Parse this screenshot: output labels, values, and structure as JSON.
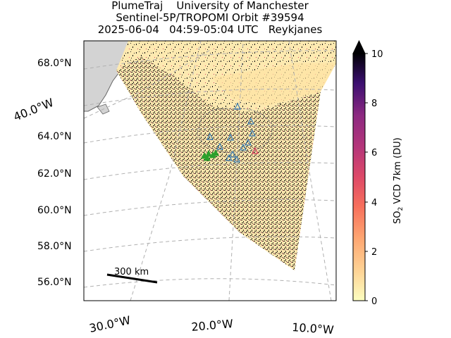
{
  "title": {
    "line1": "PlumeTraj    University of Manchester",
    "line2": "Sentinel-5P/TROPOMI Orbit #39594",
    "line3": "2025-06-04   04:59-05:04 UTC   Reykjanes"
  },
  "map": {
    "lat_labels": [
      "68.0°N",
      "64.0°N",
      "62.0°N",
      "60.0°N",
      "58.0°N",
      "56.0°N"
    ],
    "lon_labels": [
      "40.0°W",
      "30.0°W",
      "20.0°W",
      "10.0°W"
    ],
    "scale_bar_label": "300 km",
    "land_color": "#d3d3d3",
    "grid_color": "#b0b0b0"
  },
  "colorbar": {
    "label_prefix": "SO",
    "label_sub": "2",
    "label_suffix": " VCD 7km (DU)",
    "ticks": [
      "0",
      "2",
      "4",
      "6",
      "8",
      "10"
    ],
    "min": 0,
    "max": 10,
    "colormap": "magma_r"
  },
  "markers": {
    "blue_triangle_color": "#3a7fb5",
    "red_triangle_color": "#d63a5a",
    "green_marker_color": "#2ca02c"
  }
}
